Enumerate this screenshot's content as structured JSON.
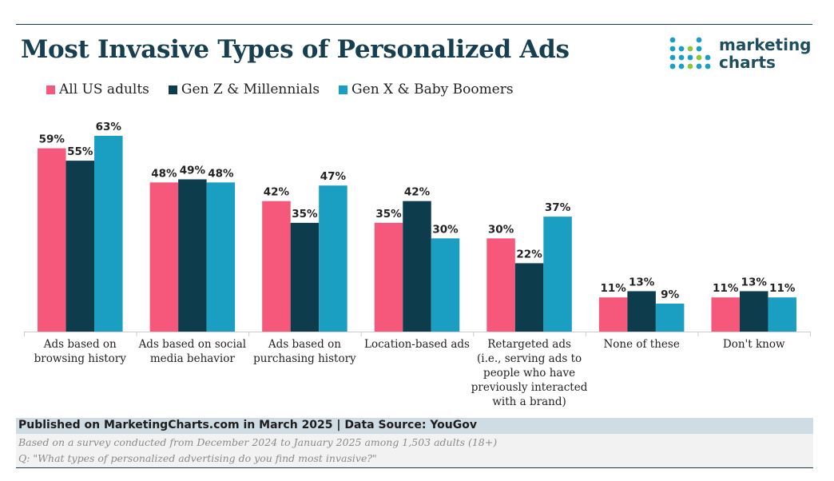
{
  "title": "Most Invasive Types of Personalized Ads",
  "logo": {
    "line1": "marketing",
    "line2": "charts"
  },
  "footer": {
    "published": "Published on MarketingCharts.com in March 2025 | Data Source: YouGov",
    "note1": "Based on a survey conducted from December 2024 to January 2025 among 1,503 adults (18+)",
    "note2": "Q: \"What types of personalized advertising do you find most invasive?\""
  },
  "colors": {
    "title": "#173f4f",
    "all_us": "#f5587a",
    "genz": "#0d3d4c",
    "genx": "#1a9fc3",
    "footer_bar": "#cfdce4"
  },
  "chart_data": {
    "type": "bar",
    "title": "Most Invasive Types of Personalized Ads",
    "categories": [
      [
        "Ads based on",
        "browsing history"
      ],
      [
        "Ads based on social",
        "media behavior"
      ],
      [
        "Ads based on",
        "purchasing history"
      ],
      [
        "Location-based ads"
      ],
      [
        "Retargeted ads",
        "(i.e., serving ads to",
        "people who have",
        "previously interacted",
        "with a brand)"
      ],
      [
        "None of these"
      ],
      [
        "Don't know"
      ]
    ],
    "series": [
      {
        "name": "All US adults",
        "color": "#f5587a",
        "values": [
          59,
          48,
          42,
          35,
          30,
          11,
          11
        ]
      },
      {
        "name": "Gen Z & Millennials",
        "color": "#0d3d4c",
        "values": [
          55,
          49,
          35,
          42,
          22,
          13,
          13
        ]
      },
      {
        "name": "Gen X & Baby Boomers",
        "color": "#1a9fc3",
        "values": [
          63,
          48,
          47,
          30,
          37,
          9,
          11
        ]
      }
    ],
    "value_suffix": "%",
    "ylim": [
      0,
      63
    ],
    "grid": false,
    "legend_position": "top-left"
  }
}
